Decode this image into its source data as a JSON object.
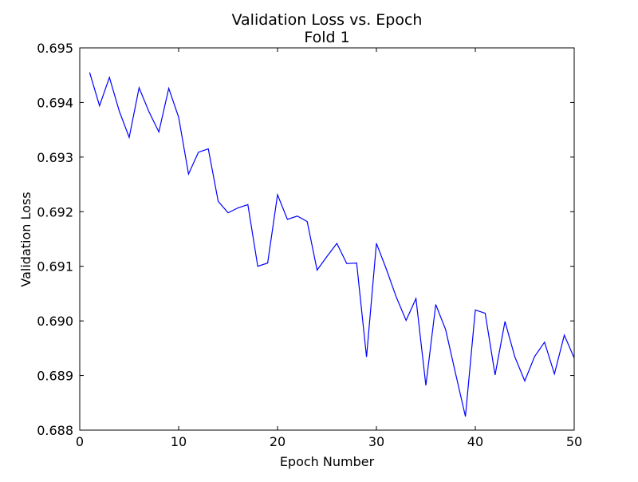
{
  "chart_data": {
    "type": "line",
    "title": "Validation Loss vs. Epoch",
    "subtitle": "Fold 1",
    "xlabel": "Epoch Number",
    "ylabel": "Validation Loss",
    "xlim": [
      0,
      50
    ],
    "ylim": [
      0.688,
      0.695
    ],
    "x_ticks": [
      "0",
      "10",
      "20",
      "30",
      "40",
      "50"
    ],
    "y_ticks": [
      "0.688",
      "0.689",
      "0.690",
      "0.691",
      "0.692",
      "0.693",
      "0.694",
      "0.695"
    ],
    "grid": false,
    "series": [
      {
        "color": "#0000ff",
        "x": [
          1,
          2,
          3,
          4,
          5,
          6,
          7,
          8,
          9,
          10,
          11,
          12,
          13,
          14,
          15,
          16,
          17,
          18,
          19,
          20,
          21,
          22,
          23,
          24,
          25,
          26,
          27,
          28,
          29,
          30,
          31,
          32,
          33,
          34,
          35,
          36,
          37,
          38,
          39,
          40,
          41,
          42,
          43,
          44,
          45,
          46,
          47,
          48,
          49,
          50
        ],
        "y": [
          0.69455,
          0.69394,
          0.69446,
          0.69384,
          0.69336,
          0.69427,
          0.69383,
          0.69346,
          0.69426,
          0.69373,
          0.69269,
          0.69309,
          0.69315,
          0.69219,
          0.69198,
          0.69207,
          0.69213,
          0.691,
          0.69106,
          0.69231,
          0.69186,
          0.69192,
          0.69182,
          0.69093,
          0.69118,
          0.69142,
          0.69105,
          0.69106,
          0.68934,
          0.69142,
          0.69095,
          0.69044,
          0.69001,
          0.69041,
          0.68882,
          0.6903,
          0.68984,
          0.68904,
          0.68825,
          0.6902,
          0.69014,
          0.68901,
          0.68999,
          0.68934,
          0.6889,
          0.68935,
          0.68961,
          0.68903,
          0.68974,
          0.68932
        ]
      }
    ]
  }
}
